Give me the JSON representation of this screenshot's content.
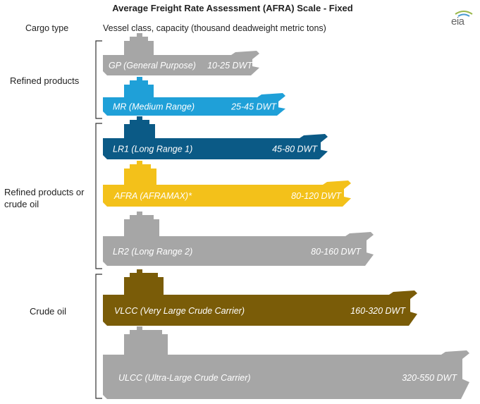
{
  "title": "Average Freight Rate Assessment (AFRA) Scale - Fixed",
  "headers": {
    "cargo_type": "Cargo type",
    "vessel_class": "Vessel class, capacity (thousand deadweight metric tons)"
  },
  "logo": {
    "text": "eia"
  },
  "categories": [
    {
      "label": "Refined products"
    },
    {
      "label": "Refined products or crude oil"
    },
    {
      "label": "Crude oil"
    }
  ],
  "colors": {
    "gray": "#a6a6a6",
    "light_blue": "#1fa0d8",
    "dark_blue": "#0b5a86",
    "yellow": "#f3c11a",
    "olive": "#7a5c08"
  },
  "vessels": [
    {
      "name": "GP (General Purpose)",
      "capacity": "10-25 DWT",
      "color": "#a6a6a6"
    },
    {
      "name": "MR (Medium Range)",
      "capacity": "25-45 DWT",
      "color": "#1fa0d8"
    },
    {
      "name": "LR1 (Long Range 1)",
      "capacity": "45-80 DWT",
      "color": "#0b5a86"
    },
    {
      "name": "AFRA (AFRAMAX)*",
      "capacity": "80-120 DWT",
      "color": "#f3c11a"
    },
    {
      "name": "LR2 (Long Range 2)",
      "capacity": "80-160 DWT",
      "color": "#a6a6a6"
    },
    {
      "name": "VLCC (Very Large Crude Carrier)",
      "capacity": "160-320 DWT",
      "color": "#7a5c08"
    },
    {
      "name": "ULCC (Ultra-Large Crude Carrier)",
      "capacity": "320-550 DWT",
      "color": "#a6a6a6"
    }
  ]
}
